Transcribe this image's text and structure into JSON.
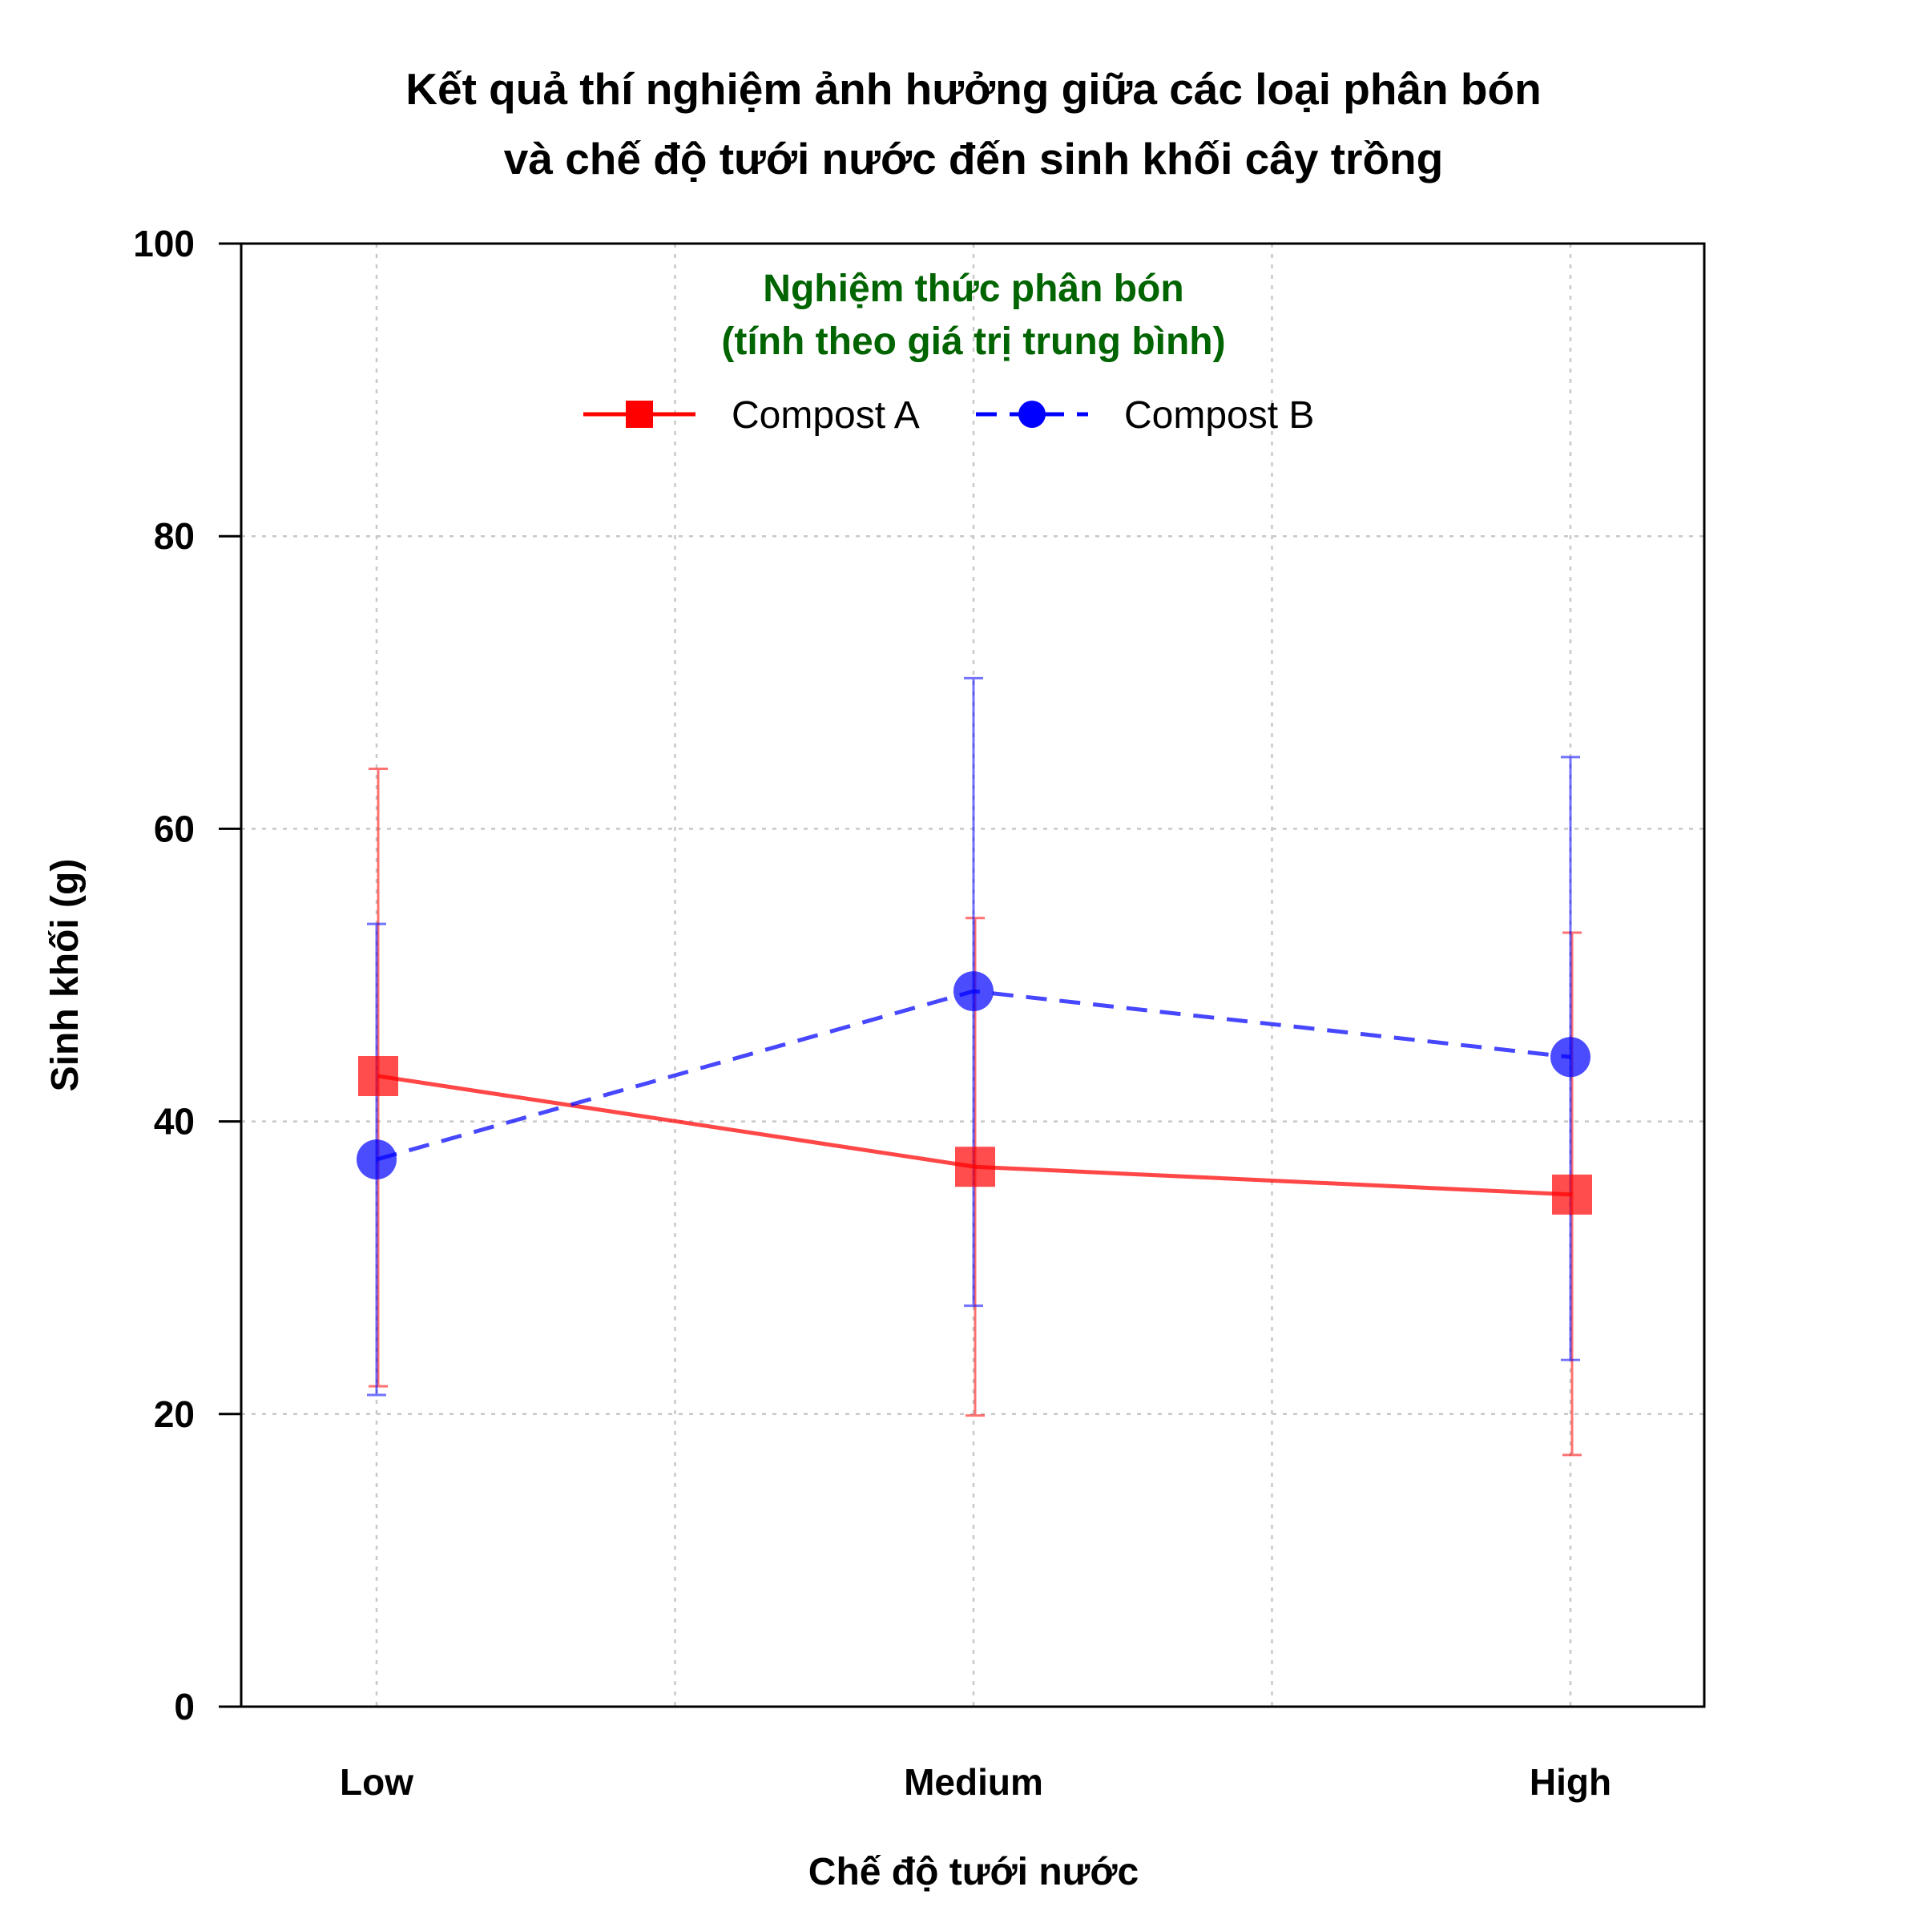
{
  "chart_data": {
    "type": "line",
    "title_lines": [
      "Kết quả thí nghiệm ảnh hưởng giữa các loại phân bón",
      "và chế độ tưới nước đến sinh khối cây trồng"
    ],
    "xlabel": "Chế độ tưới nước",
    "ylabel": "Sinh khối (g)",
    "categories": [
      "Low",
      "Medium",
      "High"
    ],
    "ylim": [
      0,
      100
    ],
    "yticks": [
      0,
      20,
      40,
      60,
      80,
      100
    ],
    "grid": true,
    "legend": {
      "title_lines": [
        "Nghiệm thức phân bón",
        "(tính theo giá trị trung bình)"
      ],
      "title_color": "#006400",
      "placement": "top-center"
    },
    "series": [
      {
        "name": "Compost A",
        "color": "#ff0000",
        "line_style": "solid",
        "marker": "square",
        "values": [
          43.1,
          36.9,
          35.0
        ],
        "error_low": [
          21.9,
          19.9,
          17.2
        ],
        "error_high": [
          64.1,
          53.9,
          52.9
        ]
      },
      {
        "name": "Compost B",
        "color": "#0000ff",
        "line_style": "dashed",
        "marker": "circle",
        "values": [
          37.4,
          48.9,
          44.4
        ],
        "error_low": [
          21.3,
          27.4,
          23.7
        ],
        "error_high": [
          53.5,
          70.3,
          64.9
        ]
      }
    ]
  }
}
